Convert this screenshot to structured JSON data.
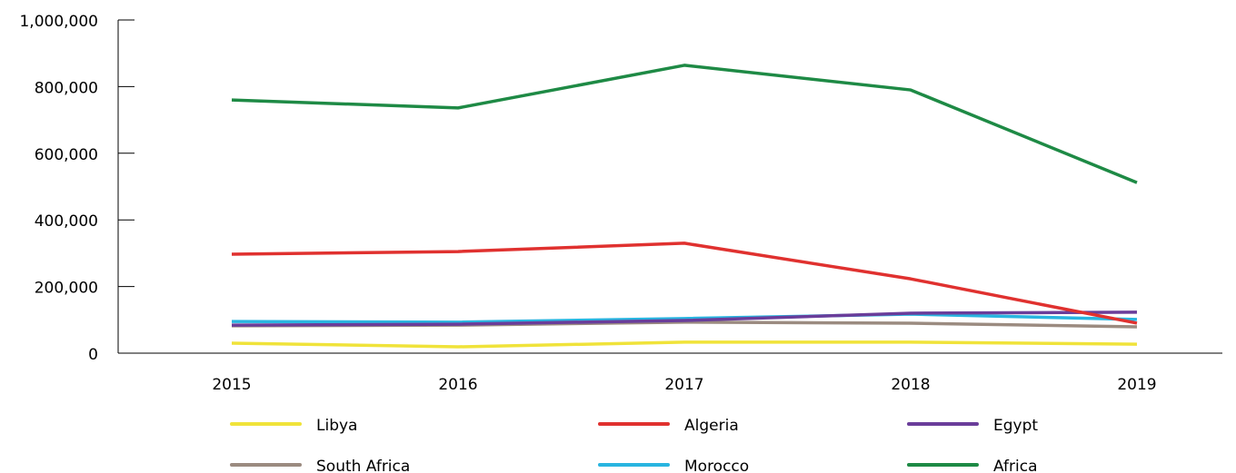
{
  "chart_data": {
    "type": "line",
    "categories": [
      "2015",
      "2016",
      "2017",
      "2018",
      "2019"
    ],
    "series": [
      {
        "name": "Libya",
        "color": "#f0e33a",
        "values": [
          30000,
          19000,
          33000,
          33000,
          27000
        ]
      },
      {
        "name": "Algeria",
        "color": "#e0312f",
        "values": [
          297000,
          305000,
          330000,
          223000,
          90000
        ]
      },
      {
        "name": "Egypt",
        "color": "#6a3d9a",
        "values": [
          84000,
          87000,
          98000,
          120000,
          123000
        ]
      },
      {
        "name": "South Africa",
        "color": "#9b8b80",
        "values": [
          82000,
          84000,
          93000,
          90000,
          79000
        ]
      },
      {
        "name": "Morocco",
        "color": "#29b5e0",
        "values": [
          95000,
          93000,
          104000,
          117000,
          101000
        ]
      },
      {
        "name": "Africa",
        "color": "#1e8a45",
        "values": [
          760000,
          736000,
          864000,
          790000,
          512000
        ]
      }
    ],
    "ylim": [
      0,
      1000000
    ],
    "yticks": [
      0,
      {
        "value": 200000,
        "label": "200,000"
      },
      {
        "value": 400000,
        "label": "400,000"
      },
      {
        "value": 600000,
        "label": "600,000"
      },
      {
        "value": 800000,
        "label": "800,000"
      },
      {
        "value": 1000000,
        "label": "1,000,000"
      }
    ]
  }
}
